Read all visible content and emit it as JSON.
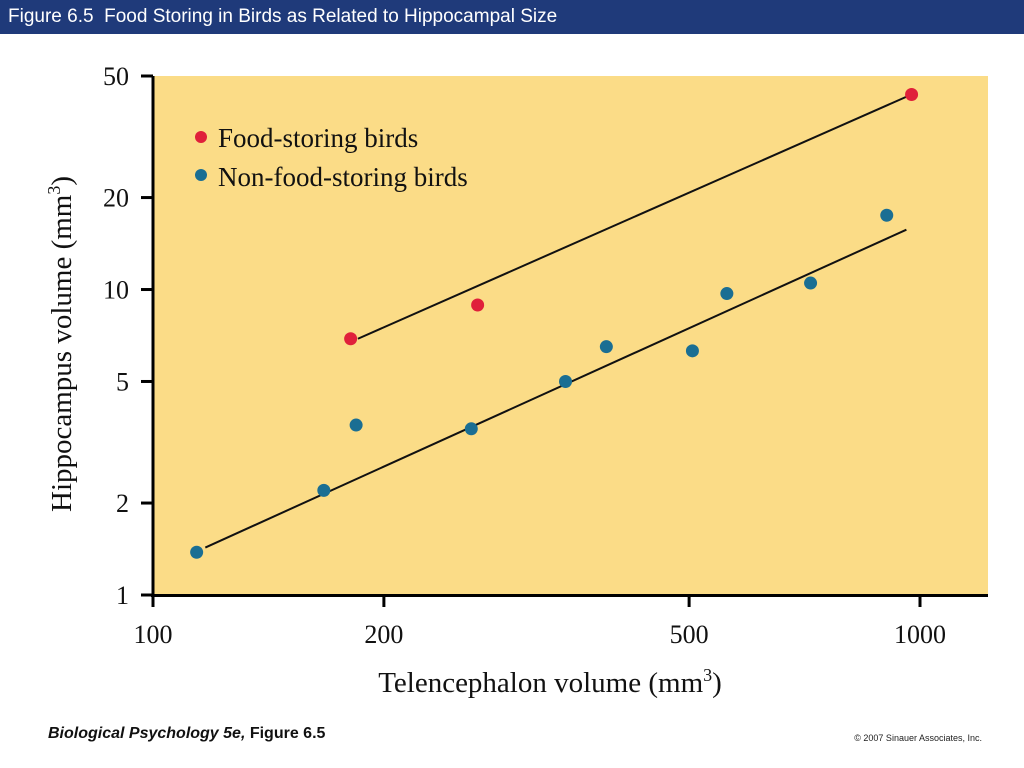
{
  "header": {
    "title": "Figure 6.5  Food Storing in Birds as Related to Hippocampal Size"
  },
  "footer": {
    "book_italic": "Biological Psychology 5e,",
    "figure_label": " Figure 6.5",
    "copyright": "© 2007 Sinauer Associates, Inc."
  },
  "colors": {
    "header_bg": "#1f3a7a",
    "plot_bg": "#fbdc87",
    "food_storing": "#e0203a",
    "non_food_storing": "#1a6e93"
  },
  "chart_data": {
    "type": "scatter",
    "xscale": "log",
    "yscale": "log",
    "xlabel": "Telencephalon volume (mm",
    "xlabel_sup": "3",
    "xlabel_end": ")",
    "ylabel": "Hippocampus volume (mm",
    "ylabel_sup": "3",
    "ylabel_end": ")",
    "xlim": [
      100,
      1200
    ],
    "ylim": [
      1,
      50
    ],
    "xticks": [
      100,
      200,
      500,
      1000
    ],
    "xtick_labels": [
      "100",
      "200",
      "500",
      "1000"
    ],
    "yticks": [
      1,
      2,
      5,
      10,
      20,
      50
    ],
    "ytick_labels": [
      "1",
      "2",
      "5",
      "10",
      "20",
      "50"
    ],
    "legend_position": "top-left",
    "series": [
      {
        "name": "Food-storing birds",
        "color": "#e0203a",
        "points": [
          [
            181,
            6.9
          ],
          [
            265,
            8.9
          ],
          [
            975,
            43.5
          ]
        ],
        "fit": [
          [
            185,
            6.9
          ],
          [
            965,
            43.0
          ]
        ]
      },
      {
        "name": "Non-food-storing birds",
        "color": "#1a6e93",
        "points": [
          [
            114,
            1.38
          ],
          [
            167,
            2.2
          ],
          [
            184,
            3.6
          ],
          [
            260,
            3.5
          ],
          [
            345,
            5.0
          ],
          [
            390,
            6.5
          ],
          [
            505,
            6.3
          ],
          [
            560,
            9.7
          ],
          [
            720,
            10.5
          ],
          [
            905,
            17.5
          ]
        ],
        "fit": [
          [
            117,
            1.43
          ],
          [
            960,
            15.7
          ]
        ]
      }
    ]
  }
}
